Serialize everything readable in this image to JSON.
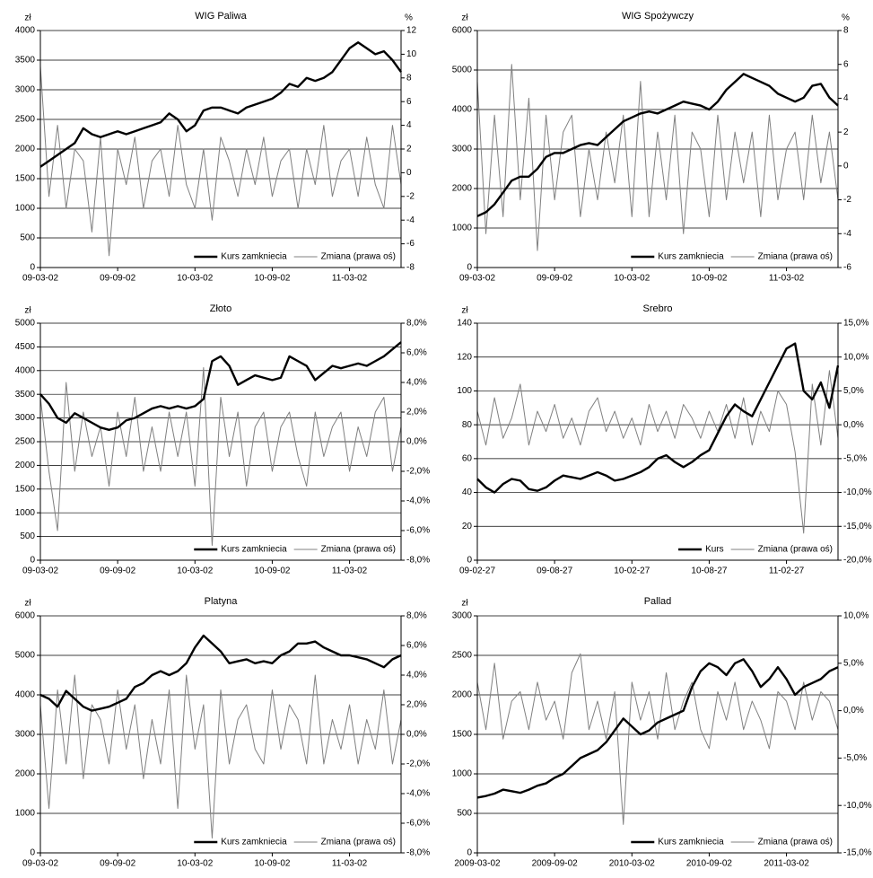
{
  "chart_data": [
    {
      "type": "line",
      "title": "WIG Paliwa",
      "y_label": "zł",
      "y2_label": "%",
      "categories": [
        "09-03-02",
        null,
        null,
        null,
        null,
        null,
        null,
        null,
        null,
        "09-09-02",
        null,
        null,
        null,
        null,
        null,
        null,
        null,
        null,
        "10-03-02",
        null,
        null,
        null,
        null,
        null,
        null,
        null,
        null,
        "10-09-02",
        null,
        null,
        null,
        null,
        null,
        null,
        null,
        null,
        "11-03-02",
        null,
        null,
        null,
        null,
        null,
        null
      ],
      "series": [
        {
          "name": "Kurs zamkniecia",
          "color": "#000000",
          "axis": "y",
          "values": [
            1700,
            1800,
            1900,
            2000,
            2100,
            2350,
            2250,
            2200,
            2250,
            2300,
            2250,
            2300,
            2350,
            2400,
            2450,
            2600,
            2500,
            2300,
            2400,
            2650,
            2700,
            2700,
            2650,
            2600,
            2700,
            2750,
            2800,
            2850,
            2950,
            3100,
            3050,
            3200,
            3150,
            3200,
            3300,
            3500,
            3700,
            3800,
            3700,
            3600,
            3650,
            3500,
            3300
          ]
        },
        {
          "name": "Zmiana (prawa oś)",
          "color": "#808080",
          "axis": "y2",
          "values": [
            9,
            -2,
            4,
            -3,
            2,
            1,
            -5,
            3,
            -7,
            2,
            -1,
            3,
            -3,
            1,
            2,
            -2,
            4,
            -1,
            -3,
            2,
            -4,
            3,
            1,
            -2,
            2,
            -1,
            3,
            -2,
            1,
            2,
            -3,
            2,
            -1,
            4,
            -2,
            1,
            2,
            -2,
            3,
            -1,
            -3,
            4,
            -1
          ]
        }
      ],
      "ylim": [
        0,
        4000
      ],
      "yticks": [
        0,
        500,
        1000,
        1500,
        2000,
        2500,
        3000,
        3500,
        4000
      ],
      "y2lim": [
        -8,
        12
      ],
      "y2ticks": [
        -8,
        -6,
        -4,
        -2,
        0,
        2,
        4,
        6,
        8,
        10,
        12
      ],
      "grid": true,
      "legend": "lower right"
    },
    {
      "type": "line",
      "title": "WIG Spożywczy",
      "y_label": "zł",
      "y2_label": "%",
      "categories": [
        "09-03-02",
        null,
        null,
        null,
        null,
        null,
        null,
        null,
        null,
        "09-09-02",
        null,
        null,
        null,
        null,
        null,
        null,
        null,
        null,
        "10-03-02",
        null,
        null,
        null,
        null,
        null,
        null,
        null,
        null,
        "10-09-02",
        null,
        null,
        null,
        null,
        null,
        null,
        null,
        null,
        "11-03-02",
        null,
        null,
        null,
        null,
        null,
        null
      ],
      "series": [
        {
          "name": "Kurs zamkniecia",
          "color": "#000000",
          "axis": "y",
          "values": [
            1300,
            1400,
            1600,
            1900,
            2200,
            2300,
            2300,
            2500,
            2800,
            2900,
            2900,
            3000,
            3100,
            3150,
            3100,
            3300,
            3500,
            3700,
            3800,
            3900,
            3950,
            3900,
            4000,
            4100,
            4200,
            4150,
            4100,
            4000,
            4200,
            4500,
            4700,
            4900,
            4800,
            4700,
            4600,
            4400,
            4300,
            4200,
            4300,
            4600,
            4650,
            4300,
            4100
          ]
        },
        {
          "name": "Zmiana (prawa oś)",
          "color": "#808080",
          "axis": "y2",
          "values": [
            5,
            -4,
            3,
            -3,
            6,
            -2,
            4,
            -5,
            3,
            -2,
            2,
            3,
            -3,
            1,
            -2,
            2,
            -1,
            3,
            -3,
            5,
            -3,
            2,
            -2,
            3,
            -4,
            2,
            1,
            -3,
            3,
            -2,
            2,
            -1,
            2,
            -3,
            3,
            -2,
            1,
            2,
            -2,
            3,
            -1,
            2,
            -2
          ]
        }
      ],
      "ylim": [
        0,
        6000
      ],
      "yticks": [
        0,
        1000,
        2000,
        3000,
        4000,
        5000,
        6000
      ],
      "y2lim": [
        -6,
        8
      ],
      "y2ticks": [
        -6,
        -4,
        -2,
        0,
        2,
        4,
        6,
        8
      ],
      "grid": true,
      "legend": "lower right"
    },
    {
      "type": "line",
      "title": "Złoto",
      "y_label": "zł",
      "categories": [
        "09-03-02",
        null,
        null,
        null,
        null,
        null,
        null,
        null,
        null,
        "09-09-02",
        null,
        null,
        null,
        null,
        null,
        null,
        null,
        null,
        "10-03-02",
        null,
        null,
        null,
        null,
        null,
        null,
        null,
        null,
        "10-09-02",
        null,
        null,
        null,
        null,
        null,
        null,
        null,
        null,
        "11-03-02",
        null,
        null,
        null,
        null,
        null,
        null
      ],
      "series": [
        {
          "name": "Kurs zamkniecia",
          "color": "#000000",
          "axis": "y",
          "values": [
            3500,
            3300,
            3000,
            2900,
            3100,
            3000,
            2900,
            2800,
            2750,
            2800,
            2950,
            3000,
            3100,
            3200,
            3250,
            3200,
            3250,
            3200,
            3250,
            3400,
            4200,
            4300,
            4100,
            3700,
            3800,
            3900,
            3850,
            3800,
            3850,
            4300,
            4200,
            4100,
            3800,
            3950,
            4100,
            4050,
            4100,
            4150,
            4100,
            4200,
            4300,
            4450,
            4600
          ]
        },
        {
          "name": "Zmiana (prawa oś)",
          "color": "#808080",
          "axis": "y2",
          "values": [
            3,
            -2,
            -6,
            4,
            -2,
            2,
            -1,
            1,
            -3,
            2,
            -1,
            3,
            -2,
            1,
            -2,
            2,
            -1,
            2,
            -3,
            5,
            -7,
            3,
            -1,
            2,
            -3,
            1,
            2,
            -2,
            1,
            2,
            -1,
            -3,
            2,
            -1,
            1,
            2,
            -2,
            1,
            -1,
            2,
            3,
            -2,
            1
          ]
        }
      ],
      "ylim": [
        0,
        5000
      ],
      "yticks": [
        0,
        500,
        1000,
        1500,
        2000,
        2500,
        3000,
        3500,
        4000,
        4500,
        5000
      ],
      "y2lim": [
        -8,
        8
      ],
      "y2ticks": [
        {
          "value": -8,
          "label": "-8,0%"
        },
        {
          "value": -6,
          "label": "-6,0%"
        },
        {
          "value": -4,
          "label": "-4,0%"
        },
        {
          "value": -2,
          "label": "-2,0%"
        },
        {
          "value": 0,
          "label": "0,0%"
        },
        {
          "value": 2,
          "label": "2,0%"
        },
        {
          "value": 4,
          "label": "4,0%"
        },
        {
          "value": 6,
          "label": "6,0%"
        },
        {
          "value": 8,
          "label": "8,0%"
        }
      ],
      "grid": true,
      "legend": "lower right"
    },
    {
      "type": "line",
      "title": "Srebro",
      "y_label": "zł",
      "categories": [
        "09-02-27",
        null,
        null,
        null,
        null,
        null,
        null,
        null,
        null,
        "09-08-27",
        null,
        null,
        null,
        null,
        null,
        null,
        null,
        null,
        "10-02-27",
        null,
        null,
        null,
        null,
        null,
        null,
        null,
        null,
        "10-08-27",
        null,
        null,
        null,
        null,
        null,
        null,
        null,
        null,
        "11-02-27",
        null,
        null,
        null,
        null,
        null,
        null
      ],
      "series": [
        {
          "name": "Kurs",
          "color": "#000000",
          "axis": "y",
          "values": [
            48,
            43,
            40,
            45,
            48,
            47,
            42,
            41,
            43,
            47,
            50,
            49,
            48,
            50,
            52,
            50,
            47,
            48,
            50,
            52,
            55,
            60,
            62,
            58,
            55,
            58,
            62,
            65,
            75,
            85,
            92,
            88,
            85,
            95,
            105,
            115,
            125,
            128,
            100,
            95,
            105,
            90,
            115
          ]
        },
        {
          "name": "Zmiana (prawa oś)",
          "color": "#808080",
          "axis": "y2",
          "values": [
            2,
            -3,
            4,
            -2,
            1,
            6,
            -3,
            2,
            -1,
            3,
            -2,
            1,
            -3,
            2,
            4,
            -1,
            2,
            -2,
            1,
            -3,
            3,
            -1,
            2,
            -2,
            3,
            1,
            -2,
            2,
            -1,
            3,
            -2,
            4,
            -3,
            2,
            -1,
            5,
            3,
            -4,
            -16,
            6,
            -3,
            8,
            -2
          ]
        }
      ],
      "ylim": [
        0,
        140
      ],
      "yticks": [
        0,
        20,
        40,
        60,
        80,
        100,
        120,
        140
      ],
      "y2lim": [
        -20,
        15
      ],
      "y2ticks": [
        {
          "value": -20,
          "label": "-20,0%"
        },
        {
          "value": -15,
          "label": "-15,0%"
        },
        {
          "value": -10,
          "label": "-10,0%"
        },
        {
          "value": -5,
          "label": "-5,0%"
        },
        {
          "value": 0,
          "label": "0,0%"
        },
        {
          "value": 5,
          "label": "5,0%"
        },
        {
          "value": 10,
          "label": "10,0%"
        },
        {
          "value": 15,
          "label": "15,0%"
        }
      ],
      "grid": true,
      "legend": "lower right"
    },
    {
      "type": "line",
      "title": "Platyna",
      "y_label": "zł",
      "categories": [
        "09-03-02",
        null,
        null,
        null,
        null,
        null,
        null,
        null,
        null,
        "09-09-02",
        null,
        null,
        null,
        null,
        null,
        null,
        null,
        null,
        "10-03-02",
        null,
        null,
        null,
        null,
        null,
        null,
        null,
        null,
        "10-09-02",
        null,
        null,
        null,
        null,
        null,
        null,
        null,
        null,
        "11-03-02",
        null,
        null,
        null,
        null,
        null,
        null
      ],
      "series": [
        {
          "name": "Kurs zamkniecia",
          "color": "#000000",
          "axis": "y",
          "values": [
            4000,
            3900,
            3700,
            4100,
            3900,
            3700,
            3600,
            3650,
            3700,
            3800,
            3900,
            4200,
            4300,
            4500,
            4600,
            4500,
            4600,
            4800,
            5200,
            5500,
            5300,
            5100,
            4800,
            4850,
            4900,
            4800,
            4850,
            4800,
            5000,
            5100,
            5300,
            5300,
            5350,
            5200,
            5100,
            5000,
            5000,
            4950,
            4900,
            4800,
            4700,
            4900,
            5000
          ]
        },
        {
          "name": "Zmiana (prawa oś)",
          "color": "#808080",
          "axis": "y2",
          "values": [
            2,
            -5,
            3,
            -2,
            4,
            -3,
            2,
            1,
            -2,
            3,
            -1,
            2,
            -3,
            1,
            -2,
            3,
            -5,
            4,
            -1,
            2,
            -7,
            3,
            -2,
            1,
            2,
            -1,
            -2,
            3,
            -1,
            2,
            1,
            -2,
            4,
            -2,
            1,
            -1,
            2,
            -2,
            1,
            -1,
            3,
            -2,
            1
          ]
        }
      ],
      "ylim": [
        0,
        6000
      ],
      "yticks": [
        0,
        1000,
        2000,
        3000,
        4000,
        5000,
        6000
      ],
      "y2lim": [
        -8,
        8
      ],
      "y2ticks": [
        {
          "value": -8,
          "label": "-8,0%"
        },
        {
          "value": -6,
          "label": "-6,0%"
        },
        {
          "value": -4,
          "label": "-4,0%"
        },
        {
          "value": -2,
          "label": "-2,0%"
        },
        {
          "value": 0,
          "label": "0,0%"
        },
        {
          "value": 2,
          "label": "2,0%"
        },
        {
          "value": 4,
          "label": "4,0%"
        },
        {
          "value": 6,
          "label": "6,0%"
        },
        {
          "value": 8,
          "label": "8,0%"
        }
      ],
      "grid": true,
      "legend": "lower right"
    },
    {
      "type": "line",
      "title": "Pallad",
      "y_label": "zł",
      "categories": [
        "2009-03-02",
        null,
        null,
        null,
        null,
        null,
        null,
        null,
        null,
        "2009-09-02",
        null,
        null,
        null,
        null,
        null,
        null,
        null,
        null,
        "2010-03-02",
        null,
        null,
        null,
        null,
        null,
        null,
        null,
        null,
        "2010-09-02",
        null,
        null,
        null,
        null,
        null,
        null,
        null,
        null,
        "2011-03-02",
        null,
        null,
        null,
        null,
        null,
        null
      ],
      "series": [
        {
          "name": "Kurs zamkniecia",
          "color": "#000000",
          "axis": "y",
          "values": [
            700,
            720,
            750,
            800,
            780,
            760,
            800,
            850,
            880,
            950,
            1000,
            1100,
            1200,
            1250,
            1300,
            1400,
            1550,
            1700,
            1600,
            1500,
            1550,
            1650,
            1700,
            1750,
            1800,
            2100,
            2300,
            2400,
            2350,
            2250,
            2400,
            2450,
            2300,
            2100,
            2200,
            2350,
            2200,
            2000,
            2100,
            2150,
            2200,
            2300,
            2350
          ]
        },
        {
          "name": "Zmiana (prawa oś)",
          "color": "#808080",
          "axis": "y2",
          "values": [
            3,
            -2,
            5,
            -3,
            1,
            2,
            -2,
            3,
            -1,
            1,
            -3,
            4,
            6,
            -2,
            1,
            -3,
            2,
            -12,
            3,
            -1,
            2,
            -3,
            4,
            -2,
            1,
            3,
            -2,
            -4,
            2,
            -1,
            3,
            -2,
            1,
            -1,
            -4,
            2,
            1,
            -2,
            3,
            -1,
            2,
            1,
            -2
          ]
        }
      ],
      "ylim": [
        0,
        3000
      ],
      "yticks": [
        0,
        500,
        1000,
        1500,
        2000,
        2500,
        3000
      ],
      "y2lim": [
        -15,
        10
      ],
      "y2ticks": [
        {
          "value": -15,
          "label": "-15,0%"
        },
        {
          "value": -10,
          "label": "-10,0%"
        },
        {
          "value": -5,
          "label": "-5,0%"
        },
        {
          "value": 0,
          "label": "0,0%"
        },
        {
          "value": 5,
          "label": "5,0%"
        },
        {
          "value": 10,
          "label": "10,0%"
        }
      ],
      "grid": true,
      "legend": "lower right"
    }
  ]
}
